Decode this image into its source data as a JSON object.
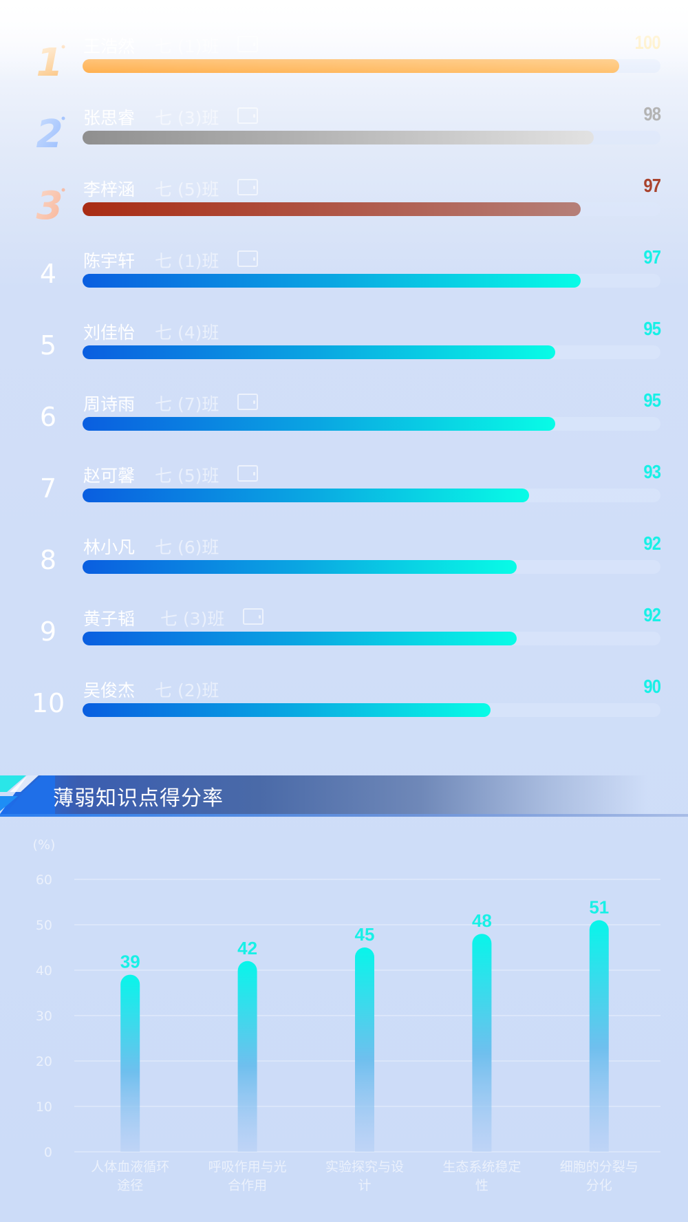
{
  "ranking": {
    "max_score": 100,
    "rows": [
      {
        "rank": "1",
        "medal": "gold",
        "name": "王浩然",
        "class": "七 (1)班",
        "has_badge": true,
        "score": "100",
        "score_value": 100,
        "score_color": "#ffe49a"
      },
      {
        "rank": "2",
        "medal": "silver",
        "name": "张思睿",
        "class": "七 (3)班",
        "has_badge": true,
        "score": "98",
        "score_value": 98,
        "score_color": "#b3b3b3"
      },
      {
        "rank": "3",
        "medal": "bronze",
        "name": "李梓涵",
        "class": "七 (5)班",
        "has_badge": true,
        "score": "97",
        "score_value": 97,
        "score_color": "#a9432d"
      },
      {
        "rank": "4",
        "medal": "",
        "name": "陈宇轩",
        "class": "七 (1)班",
        "has_badge": true,
        "score": "97",
        "score_value": 97,
        "score_color": "#18f0e6"
      },
      {
        "rank": "5",
        "medal": "",
        "name": "刘佳怡",
        "class": "七 (4)班",
        "has_badge": false,
        "score": "95",
        "score_value": 95,
        "score_color": "#18f0e6"
      },
      {
        "rank": "6",
        "medal": "",
        "name": "周诗雨",
        "class": "七 (7)班",
        "has_badge": true,
        "score": "95",
        "score_value": 95,
        "score_color": "#18f0e6"
      },
      {
        "rank": "7",
        "medal": "",
        "name": "赵可馨",
        "class": "七 (5)班",
        "has_badge": true,
        "score": "93",
        "score_value": 93,
        "score_color": "#18f0e6"
      },
      {
        "rank": "8",
        "medal": "",
        "name": "林小凡",
        "class": "七 (6)班",
        "has_badge": false,
        "score": "92",
        "score_value": 92,
        "score_color": "#18f0e6"
      },
      {
        "rank": "9",
        "medal": "",
        "name": "黄子韬",
        "class": "七 (3)班",
        "has_badge": true,
        "score": "92",
        "score_value": 92,
        "score_color": "#18f0e6"
      },
      {
        "rank": "10",
        "medal": "",
        "name": "吴俊杰",
        "class": "七 (2)班",
        "has_badge": false,
        "score": "90",
        "score_value": 90,
        "score_color": "#18f0e6"
      }
    ]
  },
  "section": {
    "title": "薄弱知识点得分率"
  },
  "chart_data": {
    "type": "bar",
    "unit_label": "(%)",
    "categories": [
      [
        "人体血液循环",
        "途径"
      ],
      [
        "呼吸作用与光",
        "合作用"
      ],
      [
        "实验探究与设",
        "计"
      ],
      [
        "生态系统稳定",
        "性"
      ],
      [
        "细胞的分裂与",
        "分化"
      ]
    ],
    "values": [
      39,
      42,
      45,
      48,
      51
    ],
    "ylim": [
      0,
      60
    ],
    "yticks": [
      0,
      10,
      20,
      30,
      40,
      50,
      60
    ],
    "grid": true,
    "bar_color_top": "#08f5ea",
    "bar_color_bottom": "#aac8f4"
  }
}
